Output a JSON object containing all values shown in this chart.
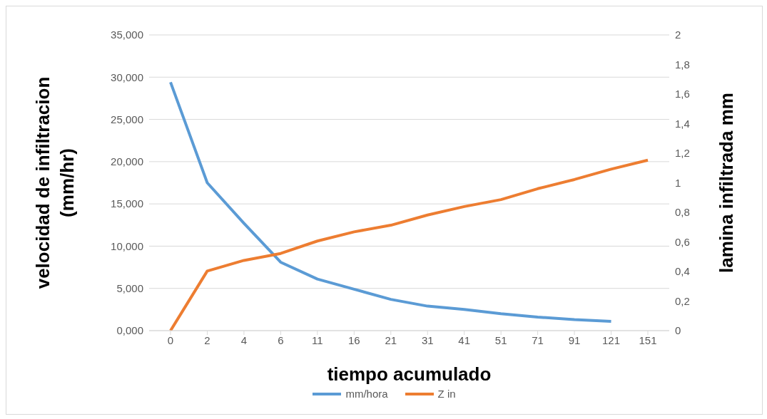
{
  "chart_data": {
    "type": "line",
    "xlabel": "tiempo acumulado",
    "ylabel": "velocidad de infiltracion (mm/hr)",
    "y2label": "lamina infiltrada mm",
    "categories": [
      "0",
      "2",
      "4",
      "6",
      "11",
      "16",
      "21",
      "31",
      "41",
      "51",
      "71",
      "91",
      "121",
      "151"
    ],
    "series": [
      {
        "name": "mm/hora",
        "color": "#5b9bd5",
        "values": [
          29.4,
          17.5,
          12.7,
          8.1,
          6.1,
          4.9,
          3.7,
          2.9,
          2.5,
          2.0,
          1.6,
          1.3,
          1.1,
          null
        ]
      },
      {
        "name": "Z in",
        "color": "#ed7d31",
        "axis": "y2",
        "values": [
          0,
          0.403,
          0.475,
          0.522,
          0.606,
          0.668,
          0.713,
          0.782,
          0.839,
          0.886,
          0.96,
          1.022,
          1.092,
          1.153
        ]
      }
    ],
    "ylim": [
      0,
      35
    ],
    "yticks": [
      {
        "value": 0,
        "label": "0,000"
      },
      {
        "value": 5,
        "label": "5,000"
      },
      {
        "value": 10,
        "label": "10,000"
      },
      {
        "value": 15,
        "label": "15,000"
      },
      {
        "value": 20,
        "label": "20,000"
      },
      {
        "value": 25,
        "label": "25,000"
      },
      {
        "value": 30,
        "label": "30,000"
      },
      {
        "value": 35,
        "label": "35,000"
      }
    ],
    "y2lim": [
      0,
      2
    ],
    "y2ticks": [
      0,
      {
        "value": 0.2,
        "label": "0,2"
      },
      {
        "value": 0.4,
        "label": "0,4"
      },
      {
        "value": 0.6,
        "label": "0,6"
      },
      {
        "value": 0.8,
        "label": "0,8"
      },
      1,
      {
        "value": 1.2,
        "label": "1,2"
      },
      {
        "value": 1.4,
        "label": "1,4"
      },
      {
        "value": 1.6,
        "label": "1,6"
      },
      {
        "value": 1.8,
        "label": "1,8"
      },
      2
    ],
    "grid": "y",
    "legend": "bottom",
    "marker": "none",
    "line_style": "solid"
  }
}
